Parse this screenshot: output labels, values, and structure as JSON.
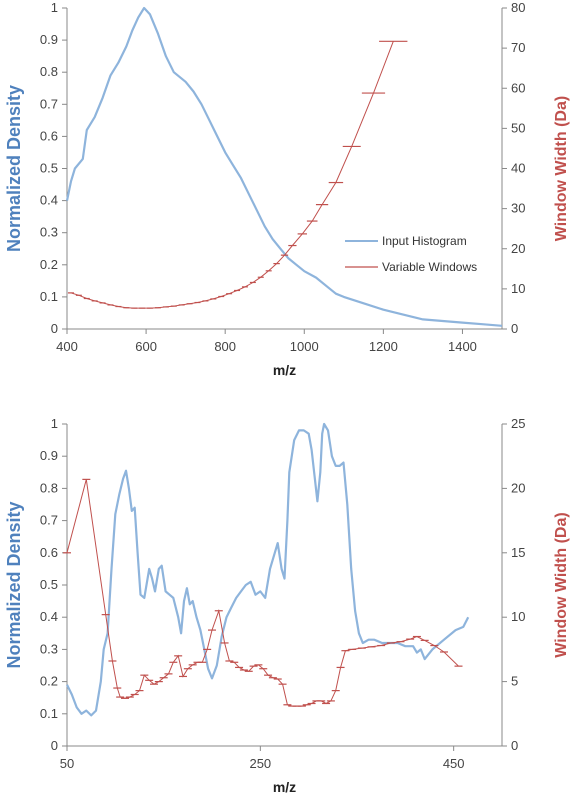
{
  "colors": {
    "density": "#8eb4dc",
    "density_label": "#4f81bd",
    "windows": "#c0504d",
    "axis": "#888888"
  },
  "chart_data": [
    {
      "type": "line",
      "xlabel": "m/z",
      "ylabel_left": "Normalized Density",
      "ylabel_right": "Window Width (Da)",
      "xlim": [
        400,
        1500
      ],
      "ylim_left": [
        0,
        1
      ],
      "ylim_right": [
        0,
        80
      ],
      "xticks": [
        "400",
        "600",
        "800",
        "1000",
        "1200",
        "1400"
      ],
      "yticks_left": [
        "0",
        "0.1",
        "0.2",
        "0.3",
        "0.4",
        "0.5",
        "0.6",
        "0.7",
        "0.8",
        "0.9",
        "1"
      ],
      "yticks_right": [
        "0",
        "10",
        "20",
        "30",
        "40",
        "50",
        "60",
        "70",
        "80"
      ],
      "grid": false,
      "legend": {
        "placement": "center-right",
        "entries": [
          "Input Histogram",
          "Variable Windows"
        ]
      },
      "series": [
        {
          "name": "Input Histogram",
          "axis": "left",
          "points": [
            [
              400,
              0.4
            ],
            [
              410,
              0.46
            ],
            [
              420,
              0.5
            ],
            [
              440,
              0.53
            ],
            [
              450,
              0.62
            ],
            [
              470,
              0.66
            ],
            [
              490,
              0.72
            ],
            [
              510,
              0.79
            ],
            [
              530,
              0.83
            ],
            [
              550,
              0.88
            ],
            [
              565,
              0.93
            ],
            [
              580,
              0.97
            ],
            [
              595,
              1.0
            ],
            [
              610,
              0.98
            ],
            [
              630,
              0.92
            ],
            [
              650,
              0.85
            ],
            [
              670,
              0.8
            ],
            [
              700,
              0.77
            ],
            [
              720,
              0.74
            ],
            [
              740,
              0.7
            ],
            [
              760,
              0.65
            ],
            [
              780,
              0.6
            ],
            [
              800,
              0.55
            ],
            [
              820,
              0.51
            ],
            [
              840,
              0.47
            ],
            [
              860,
              0.42
            ],
            [
              880,
              0.37
            ],
            [
              900,
              0.32
            ],
            [
              920,
              0.28
            ],
            [
              940,
              0.25
            ],
            [
              960,
              0.22
            ],
            [
              980,
              0.2
            ],
            [
              1000,
              0.18
            ],
            [
              1030,
              0.16
            ],
            [
              1060,
              0.13
            ],
            [
              1080,
              0.11
            ],
            [
              1100,
              0.1
            ],
            [
              1150,
              0.08
            ],
            [
              1200,
              0.06
            ],
            [
              1250,
              0.045
            ],
            [
              1300,
              0.03
            ],
            [
              1350,
              0.025
            ],
            [
              1400,
              0.02
            ],
            [
              1450,
              0.015
            ],
            [
              1500,
              0.01
            ]
          ]
        },
        {
          "name": "Variable Windows",
          "axis": "right",
          "points": [
            [
              410,
              9.0
            ],
            [
              430,
              8.4
            ],
            [
              450,
              7.6
            ],
            [
              470,
              7.0
            ],
            [
              490,
              6.5
            ],
            [
              510,
              6.0
            ],
            [
              530,
              5.6
            ],
            [
              550,
              5.3
            ],
            [
              570,
              5.2
            ],
            [
              590,
              5.2
            ],
            [
              610,
              5.2
            ],
            [
              630,
              5.3
            ],
            [
              650,
              5.5
            ],
            [
              670,
              5.7
            ],
            [
              690,
              6.0
            ],
            [
              710,
              6.3
            ],
            [
              730,
              6.6
            ],
            [
              750,
              7.0
            ],
            [
              770,
              7.5
            ],
            [
              790,
              8.1
            ],
            [
              810,
              8.8
            ],
            [
              830,
              9.6
            ],
            [
              850,
              10.5
            ],
            [
              870,
              11.6
            ],
            [
              890,
              12.9
            ],
            [
              910,
              14.5
            ],
            [
              930,
              16.3
            ],
            [
              950,
              18.4
            ],
            [
              970,
              20.8
            ],
            [
              995,
              23.7
            ],
            [
              1020,
              26.9
            ],
            [
              1045,
              31.0
            ],
            [
              1080,
              36.5
            ],
            [
              1120,
              45.5
            ],
            [
              1175,
              58.8
            ],
            [
              1225,
              71.7
            ]
          ]
        }
      ]
    },
    {
      "type": "line",
      "xlabel": "m/z",
      "ylabel_left": "Normalized Density",
      "ylabel_right": "Window Width (Da)",
      "xlim": [
        50,
        500
      ],
      "ylim_left": [
        0,
        1
      ],
      "ylim_right": [
        0,
        25
      ],
      "xticks": [
        "50",
        "250",
        "450"
      ],
      "yticks_left": [
        "0",
        "0.1",
        "0.2",
        "0.3",
        "0.4",
        "0.5",
        "0.6",
        "0.7",
        "0.8",
        "0.9",
        "1"
      ],
      "yticks_right": [
        "0",
        "5",
        "10",
        "15",
        "20",
        "25"
      ],
      "grid": false,
      "legend": null,
      "series": [
        {
          "name": "Input Histogram",
          "axis": "left",
          "points": [
            [
              50,
              0.19
            ],
            [
              55,
              0.16
            ],
            [
              60,
              0.12
            ],
            [
              65,
              0.1
            ],
            [
              70,
              0.11
            ],
            [
              75,
              0.095
            ],
            [
              80,
              0.11
            ],
            [
              85,
              0.2
            ],
            [
              88,
              0.3
            ],
            [
              92,
              0.35
            ],
            [
              96,
              0.55
            ],
            [
              100,
              0.72
            ],
            [
              104,
              0.78
            ],
            [
              108,
              0.83
            ],
            [
              111,
              0.855
            ],
            [
              114,
              0.8
            ],
            [
              117,
              0.73
            ],
            [
              120,
              0.74
            ],
            [
              123,
              0.6
            ],
            [
              126,
              0.47
            ],
            [
              130,
              0.46
            ],
            [
              135,
              0.55
            ],
            [
              138,
              0.52
            ],
            [
              141,
              0.48
            ],
            [
              145,
              0.55
            ],
            [
              148,
              0.56
            ],
            [
              152,
              0.48
            ],
            [
              156,
              0.47
            ],
            [
              160,
              0.46
            ],
            [
              165,
              0.4
            ],
            [
              168,
              0.35
            ],
            [
              171,
              0.45
            ],
            [
              174,
              0.49
            ],
            [
              177,
              0.44
            ],
            [
              180,
              0.45
            ],
            [
              184,
              0.4
            ],
            [
              188,
              0.36
            ],
            [
              192,
              0.3
            ],
            [
              196,
              0.24
            ],
            [
              200,
              0.21
            ],
            [
              205,
              0.25
            ],
            [
              210,
              0.34
            ],
            [
              215,
              0.4
            ],
            [
              220,
              0.43
            ],
            [
              225,
              0.46
            ],
            [
              230,
              0.48
            ],
            [
              235,
              0.5
            ],
            [
              240,
              0.51
            ],
            [
              245,
              0.47
            ],
            [
              250,
              0.48
            ],
            [
              255,
              0.46
            ],
            [
              260,
              0.55
            ],
            [
              265,
              0.6
            ],
            [
              268,
              0.63
            ],
            [
              272,
              0.55
            ],
            [
              275,
              0.52
            ],
            [
              278,
              0.7
            ],
            [
              280,
              0.85
            ],
            [
              285,
              0.95
            ],
            [
              290,
              0.98
            ],
            [
              295,
              0.98
            ],
            [
              300,
              0.97
            ],
            [
              303,
              0.92
            ],
            [
              306,
              0.84
            ],
            [
              309,
              0.76
            ],
            [
              312,
              0.85
            ],
            [
              314,
              0.97
            ],
            [
              316,
              1.0
            ],
            [
              320,
              0.98
            ],
            [
              324,
              0.9
            ],
            [
              328,
              0.87
            ],
            [
              332,
              0.87
            ],
            [
              336,
              0.88
            ],
            [
              340,
              0.75
            ],
            [
              344,
              0.55
            ],
            [
              348,
              0.42
            ],
            [
              352,
              0.35
            ],
            [
              356,
              0.32
            ],
            [
              362,
              0.33
            ],
            [
              368,
              0.33
            ],
            [
              376,
              0.32
            ],
            [
              384,
              0.32
            ],
            [
              392,
              0.32
            ],
            [
              400,
              0.31
            ],
            [
              408,
              0.31
            ],
            [
              412,
              0.29
            ],
            [
              416,
              0.3
            ],
            [
              420,
              0.27
            ],
            [
              428,
              0.3
            ],
            [
              440,
              0.33
            ],
            [
              452,
              0.36
            ],
            [
              460,
              0.37
            ],
            [
              465,
              0.4
            ]
          ]
        },
        {
          "name": "Variable Windows",
          "axis": "right",
          "points": [
            [
              50,
              15.0
            ],
            [
              70,
              20.7
            ],
            [
              90,
              10.2
            ],
            [
              97,
              6.6
            ],
            [
              102,
              4.5
            ],
            [
              105,
              3.8
            ],
            [
              110,
              3.7
            ],
            [
              115,
              3.8
            ],
            [
              120,
              4.0
            ],
            [
              125,
              4.3
            ],
            [
              130,
              5.5
            ],
            [
              135,
              5.1
            ],
            [
              140,
              4.8
            ],
            [
              145,
              5.0
            ],
            [
              150,
              5.3
            ],
            [
              155,
              5.6
            ],
            [
              160,
              6.5
            ],
            [
              165,
              7.0
            ],
            [
              170,
              5.4
            ],
            [
              175,
              6.0
            ],
            [
              180,
              6.3
            ],
            [
              185,
              6.5
            ],
            [
              190,
              6.5
            ],
            [
              195,
              7.5
            ],
            [
              200,
              9.0
            ],
            [
              207,
              10.5
            ],
            [
              213,
              8.0
            ],
            [
              218,
              6.6
            ],
            [
              223,
              6.5
            ],
            [
              228,
              6.1
            ],
            [
              233,
              5.9
            ],
            [
              238,
              5.8
            ],
            [
              243,
              6.2
            ],
            [
              248,
              6.3
            ],
            [
              253,
              6.0
            ],
            [
              258,
              5.5
            ],
            [
              263,
              5.3
            ],
            [
              268,
              5.2
            ],
            [
              273,
              4.8
            ],
            [
              278,
              3.2
            ],
            [
              283,
              3.1
            ],
            [
              288,
              3.1
            ],
            [
              293,
              3.1
            ],
            [
              298,
              3.2
            ],
            [
              303,
              3.3
            ],
            [
              308,
              3.5
            ],
            [
              313,
              3.5
            ],
            [
              318,
              3.3
            ],
            [
              323,
              3.5
            ],
            [
              328,
              4.3
            ],
            [
              333,
              6.1
            ],
            [
              338,
              7.4
            ],
            [
              345,
              7.5
            ],
            [
              355,
              7.6
            ],
            [
              365,
              7.7
            ],
            [
              375,
              7.8
            ],
            [
              385,
              8.0
            ],
            [
              395,
              8.1
            ],
            [
              405,
              8.3
            ],
            [
              412,
              8.5
            ],
            [
              420,
              8.2
            ],
            [
              430,
              7.8
            ],
            [
              440,
              7.3
            ],
            [
              455,
              6.2
            ]
          ]
        }
      ]
    }
  ]
}
